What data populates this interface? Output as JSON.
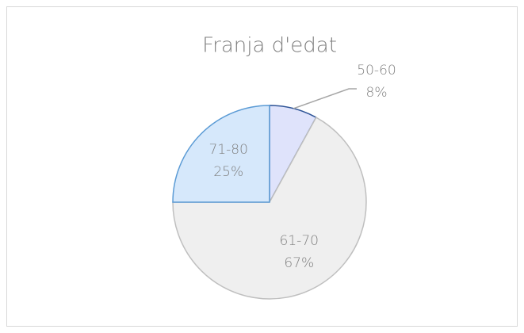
{
  "chart_data": {
    "type": "pie",
    "title": "Franja d'edat",
    "categories": [
      "50-60",
      "61-70",
      "71-80"
    ],
    "values": [
      8,
      67,
      25
    ],
    "value_labels": [
      "8%",
      "67%",
      "25%"
    ],
    "colors": [
      "#dfe3fb",
      "#efefef",
      "#d6e8fb"
    ],
    "stroke_colors": [
      "#2f5597",
      "#bfbfbf",
      "#5b9bd5"
    ]
  }
}
